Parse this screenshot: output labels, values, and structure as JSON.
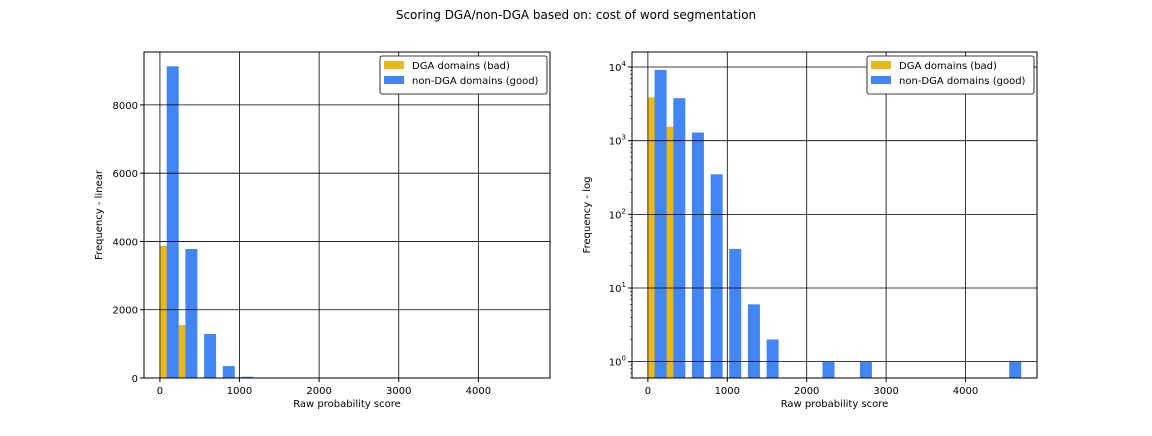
{
  "figure": {
    "suptitle": "Scoring DGA/non-DGA based on: cost of word segmentation"
  },
  "colors": {
    "dga": "#e8b81e",
    "nondga": "#4285f4"
  },
  "chart_data": [
    {
      "type": "bar",
      "scale": "linear",
      "xlabel": "Raw probability score",
      "ylabel": "Frequency - linear",
      "xlim": [
        -200,
        4900
      ],
      "ylim": [
        0,
        9550
      ],
      "xticks": [
        0,
        1000,
        2000,
        3000,
        4000
      ],
      "yticks": [
        0,
        2000,
        4000,
        6000,
        8000
      ],
      "grid": true,
      "legend_position": "top-right",
      "series": [
        {
          "name": "DGA domains (bad)",
          "color": "#e8b81e",
          "x": [
            75,
            310
          ],
          "values": [
            3870,
            1550
          ]
        },
        {
          "name": "non-DGA domains (good)",
          "color": "#4285f4",
          "x": [
            160,
            395,
            630,
            865,
            1100
          ],
          "values": [
            9130,
            3780,
            1290,
            350,
            34
          ]
        }
      ]
    },
    {
      "type": "bar",
      "scale": "log",
      "xlabel": "Raw probability score",
      "ylabel": "Frequency - log",
      "xlim": [
        -200,
        4900
      ],
      "ylim": [
        0.6,
        16000
      ],
      "xticks": [
        0,
        1000,
        2000,
        3000,
        4000
      ],
      "yticks": [
        1,
        10,
        100,
        1000,
        10000
      ],
      "ytick_exponents": [
        "0",
        "1",
        "2",
        "3",
        "4"
      ],
      "ytick_base": "10",
      "grid": true,
      "legend_position": "top-right",
      "series": [
        {
          "name": "DGA domains (bad)",
          "color": "#e8b81e",
          "x": [
            75,
            310
          ],
          "values": [
            3870,
            1550
          ]
        },
        {
          "name": "non-DGA domains (good)",
          "color": "#4285f4",
          "x": [
            160,
            395,
            630,
            865,
            1100,
            1335,
            1570,
            2275,
            2745,
            4625
          ],
          "values": [
            9130,
            3780,
            1290,
            350,
            34,
            6,
            2,
            1,
            1,
            1
          ]
        }
      ]
    }
  ]
}
